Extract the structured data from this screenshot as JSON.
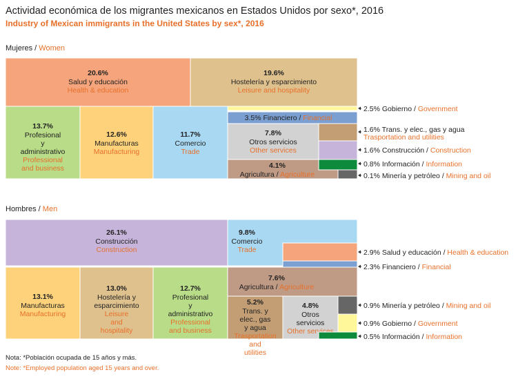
{
  "title": "Actividad económica de los migrantes mexicanos en Estados Unidos por sexo*, 2016",
  "subtitle": "Industry of Mexican immigrants in the United States by sex*, 2016",
  "women_label": {
    "es": "Mujeres",
    "sep": " / ",
    "en": "Women"
  },
  "men_label": {
    "es": "Hombres",
    "sep": " / ",
    "en": "Men"
  },
  "note_es": "Nota: *Población ocupada de 15 años y más.",
  "note_en": "Note: *Employed population aged 15 years and over.",
  "colors": {
    "health": "#f5a47c",
    "leisure": "#dfc18e",
    "government": "#fff799",
    "financial": "#7b9fd0",
    "professional": "#b8dc88",
    "manufacturing": "#fdd27b",
    "trade": "#a8d8f2",
    "other": "#d2d2d2",
    "transportation": "#c39e74",
    "construction": "#c6b4da",
    "information": "#0d8a3c",
    "mining": "#666666",
    "agriculture": "#bf9a85",
    "label_en": "#e8702a"
  },
  "chart_data": [
    {
      "type": "treemap",
      "name": "Mujeres / Women",
      "unit": "%",
      "items": [
        {
          "value": "20.6%",
          "es": "Salud y educación",
          "en": "Health & education",
          "color": "health"
        },
        {
          "value": "19.6%",
          "es": "Hostelería y esparcimiento",
          "en": "Leisure and hospitality",
          "color": "leisure"
        },
        {
          "value": "2.5%",
          "es": "Gobierno",
          "en": "Government",
          "color": "government"
        },
        {
          "value": "13.7%",
          "es": "Profesional y administrativo",
          "en": "Professional and business",
          "color": "professional"
        },
        {
          "value": "12.6%",
          "es": "Manufacturas",
          "en": "Manufacturing",
          "color": "manufacturing"
        },
        {
          "value": "11.7%",
          "es": "Comercio",
          "en": "Trade",
          "color": "trade"
        },
        {
          "value": "3.5%",
          "es": "Financiero",
          "en": "Financial",
          "color": "financial"
        },
        {
          "value": "7.8%",
          "es": "Otros servicios",
          "en": "Other services",
          "color": "other"
        },
        {
          "value": "1.6%",
          "es": "Trans. y elec., gas y agua",
          "en": "Trasportation and utilities",
          "color": "transportation"
        },
        {
          "value": "1.6%",
          "es": "Construcción",
          "en": "Construction",
          "color": "construction"
        },
        {
          "value": "4.1%",
          "es": "Agricultura",
          "en": "Agriculture",
          "color": "agriculture"
        },
        {
          "value": "0.8%",
          "es": "Información",
          "en": "Information",
          "color": "information"
        },
        {
          "value": "0.1%",
          "es": "Minería y petróleo",
          "en": "Mining and oil",
          "color": "mining"
        }
      ]
    },
    {
      "type": "treemap",
      "name": "Hombres / Men",
      "unit": "%",
      "items": [
        {
          "value": "26.1%",
          "es": "Construcción",
          "en": "Construction",
          "color": "construction"
        },
        {
          "value": "9.8%",
          "es": "Comercio",
          "en": "Trade",
          "color": "trade"
        },
        {
          "value": "2.9%",
          "es": "Salud y educación",
          "en": "Health & education",
          "color": "health"
        },
        {
          "value": "2.3%",
          "es": "Financiero",
          "en": "Financial",
          "color": "financial"
        },
        {
          "value": "13.1%",
          "es": "Manufacturas",
          "en": "Manufacturing",
          "color": "manufacturing"
        },
        {
          "value": "13.0%",
          "es": "Hostelería y esparcimiento",
          "en": "Leisure and hospitality",
          "color": "leisure"
        },
        {
          "value": "12.7%",
          "es": "Profesional y administrativo",
          "en": "Professional and business",
          "color": "professional"
        },
        {
          "value": "7.6%",
          "es": "Agricultura",
          "en": "Agriculture",
          "color": "agriculture"
        },
        {
          "value": "5.2%",
          "es": "Trans. y elec., gas y agua",
          "en": "Trasportation and utilities",
          "color": "transportation"
        },
        {
          "value": "4.8%",
          "es": "Otros servicios",
          "en": "Other services",
          "color": "other"
        },
        {
          "value": "0.9%",
          "es": "Minería y petróleo",
          "en": "Mining and oil",
          "color": "mining"
        },
        {
          "value": "0.9%",
          "es": "Gobierno",
          "en": "Government",
          "color": "government"
        },
        {
          "value": "0.5%",
          "es": "Información",
          "en": "Information",
          "color": "information"
        }
      ]
    }
  ]
}
